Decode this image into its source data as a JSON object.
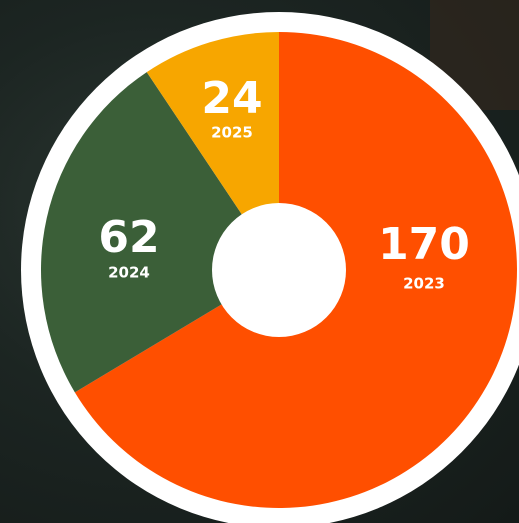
{
  "chart_data": {
    "type": "pie",
    "categories": [
      "2023",
      "2024",
      "2025"
    ],
    "values": [
      170,
      62,
      24
    ],
    "colors": [
      "#ff4f00",
      "#3b5f38",
      "#f7a600"
    ]
  }
}
